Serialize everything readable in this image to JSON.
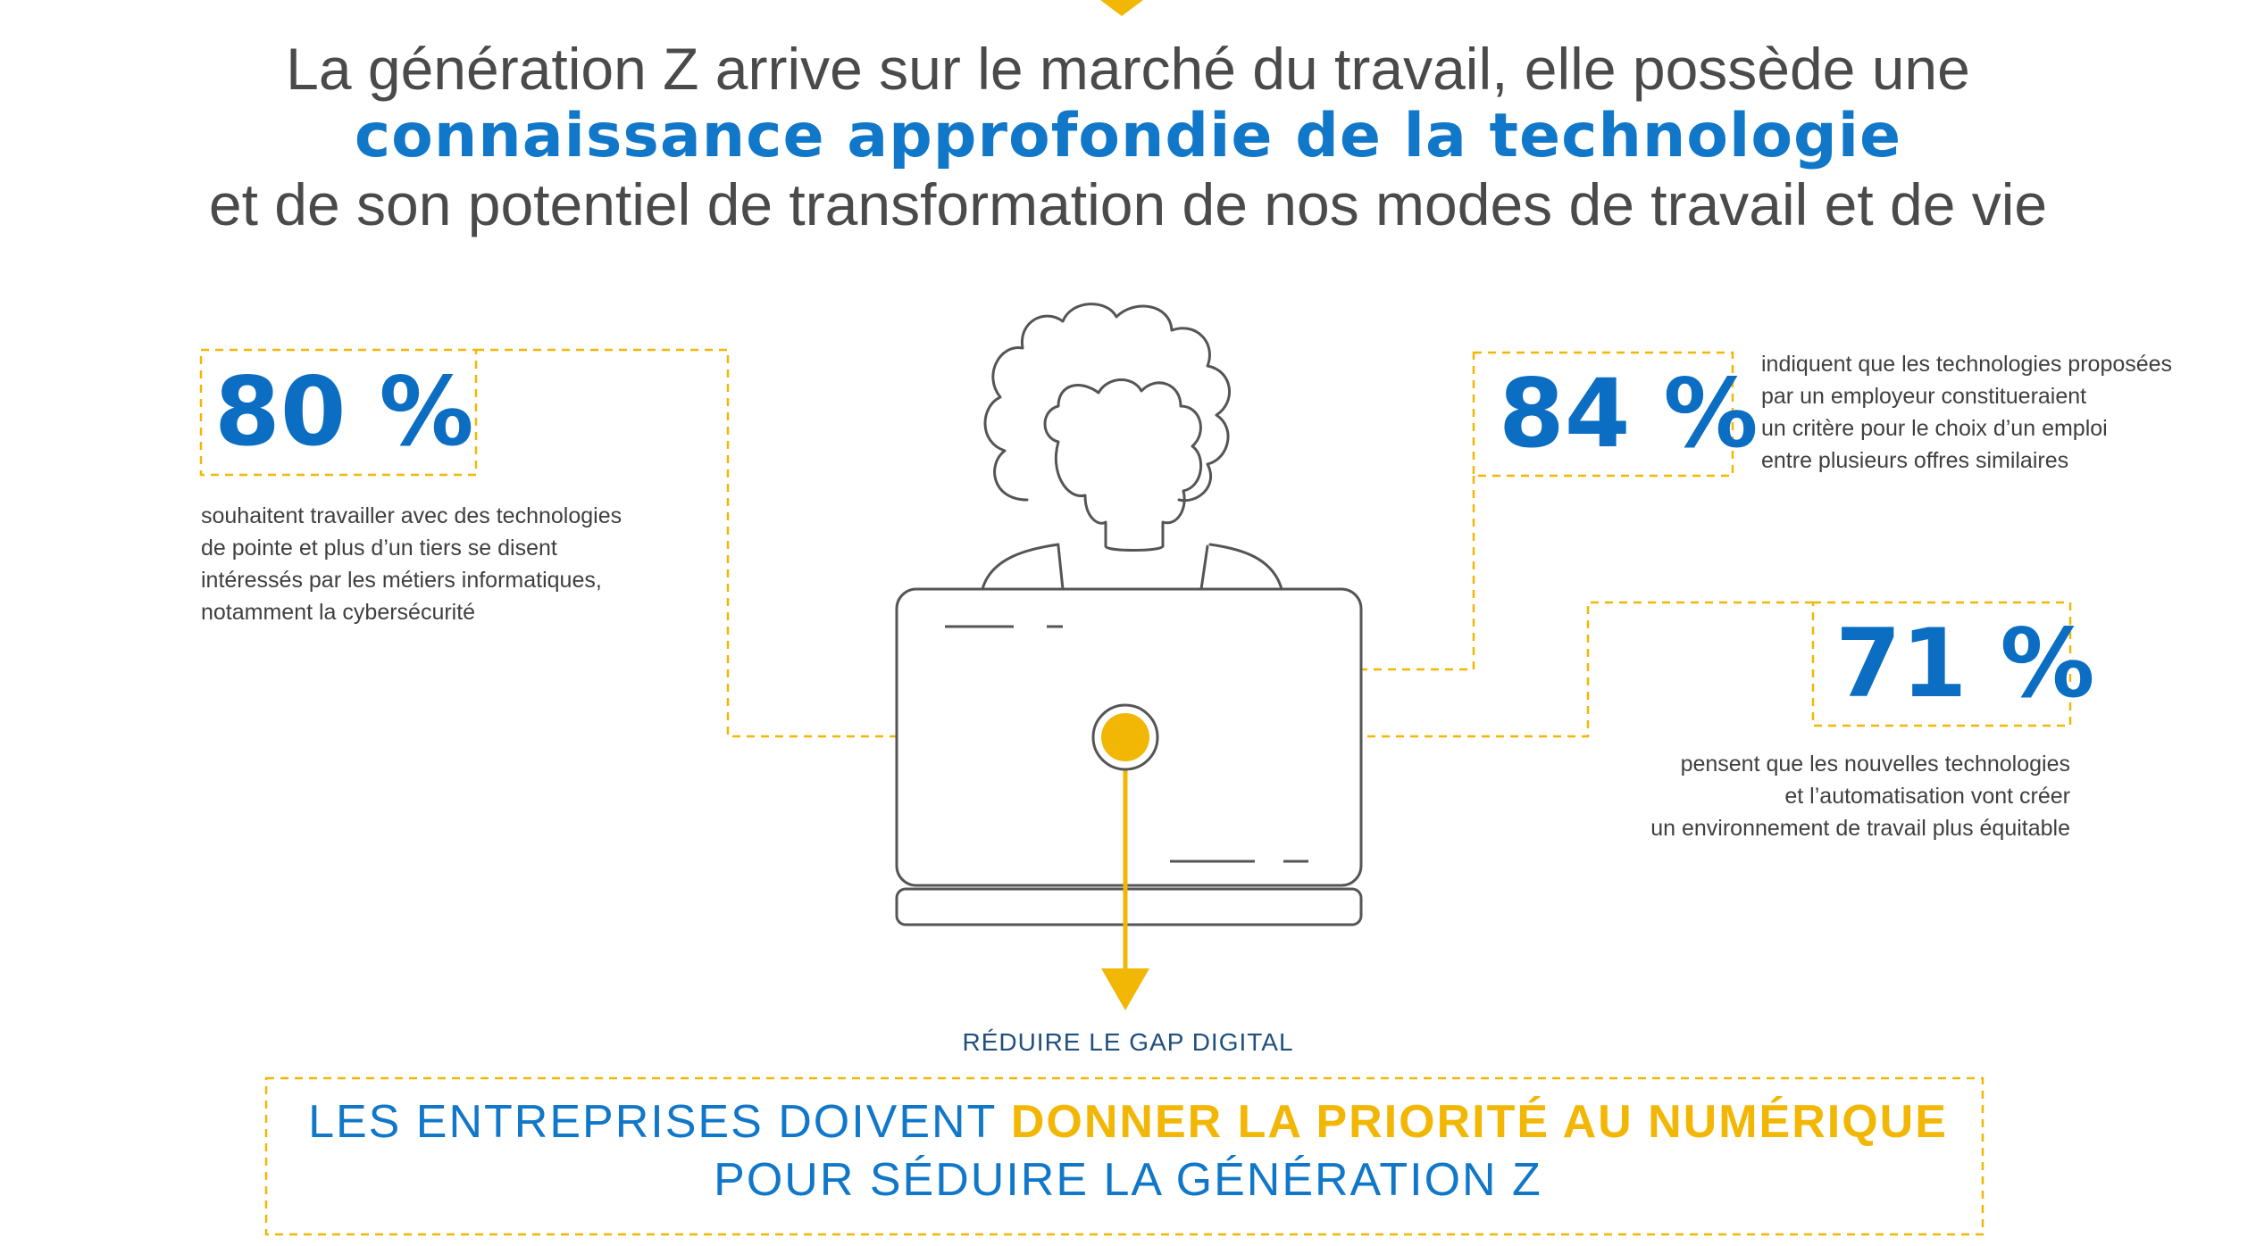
{
  "headline": {
    "line1": "La génération Z arrive sur le marché du travail, elle possède une",
    "line2": "connaissance approfondie de la technologie",
    "line3": "et de son potentiel de transformation de nos modes de travail et de vie"
  },
  "stats": [
    {
      "value": "80 %",
      "description": [
        "souhaitent travailler avec des technologies",
        "de pointe et plus d’un tiers se disent",
        "intéressés par les métiers informatiques,",
        "notamment la cybersécurité"
      ]
    },
    {
      "value": "84 %",
      "description": [
        "indiquent que les technologies proposées",
        "par un employeur constitueraient",
        "un critère pour le choix d’un emploi",
        "entre plusieurs offres similaires"
      ]
    },
    {
      "value": "71 %",
      "description": [
        "pensent que les nouvelles technologies",
        "et l’automatisation vont créer",
        "un environnement de travail plus équitable"
      ]
    }
  ],
  "arrow_label": "RÉDUIRE LE GAP DIGITAL",
  "cta": {
    "line1_prefix": "LES ENTREPRISES DOIVENT ",
    "line1_highlight": "DONNER LA PRIORITÉ AU NUMÉRIQUE",
    "line2": "POUR SÉDUIRE LA GÉNÉRATION Z"
  },
  "colors": {
    "blue": "#1177c9",
    "yellow": "#f2b705",
    "gray_text": "#4a4a4a",
    "outline": "#555555"
  },
  "icons": [
    "person-icon",
    "laptop-icon",
    "down-arrow-icon",
    "target-dot-icon"
  ]
}
